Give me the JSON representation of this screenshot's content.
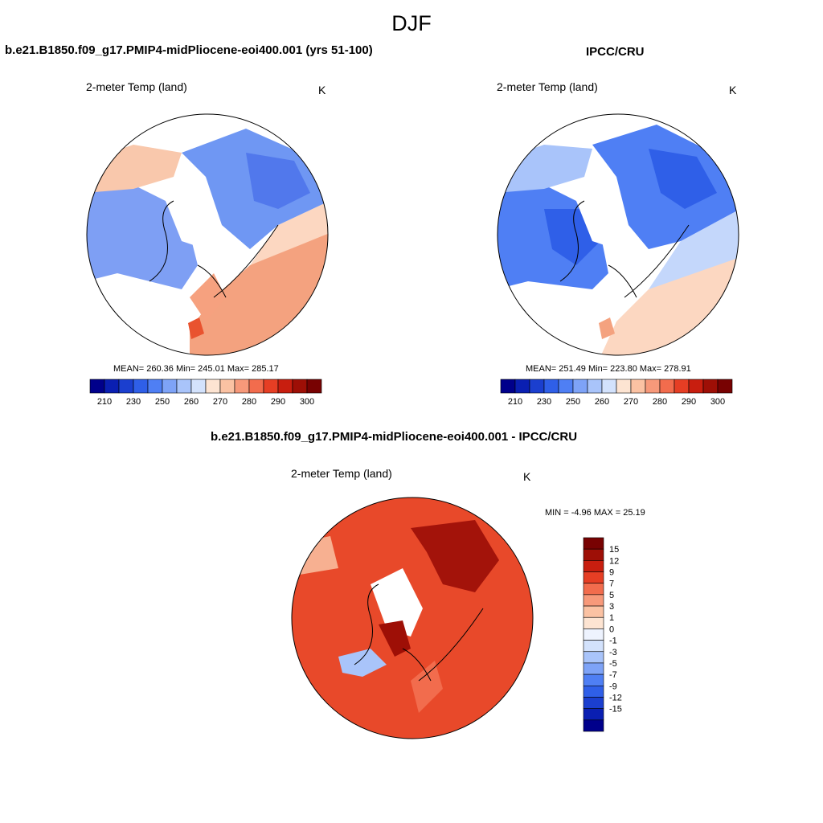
{
  "figure": {
    "title": "DJF"
  },
  "palette": {
    "horizontal": [
      "#00008b",
      "#0a1fb2",
      "#1b3fcf",
      "#2f5fe8",
      "#4f7ff4",
      "#7ea3f7",
      "#a9c4fa",
      "#d3e2fc",
      "#fde4d2",
      "#fbc2a3",
      "#f7997a",
      "#f26c4d",
      "#e63e24",
      "#c81e0f",
      "#9e0f06",
      "#780202"
    ],
    "vertical": [
      "#00008b",
      "#0a1fb2",
      "#1b3fcf",
      "#2f5fe8",
      "#4f7ff4",
      "#7ea3f7",
      "#a9c4fa",
      "#d3e2fc",
      "#eef3fe",
      "#fde4d2",
      "#fbc2a3",
      "#f7997a",
      "#f26c4d",
      "#e63e24",
      "#c81e0f",
      "#9e0f06",
      "#780202"
    ]
  },
  "panels": {
    "model": {
      "title": "b.e21.B1850.f09_g17.PMIP4-midPliocene-eoi400.001 (yrs 51-100)",
      "variable": "2-meter Temp (land)",
      "units": "K",
      "stats": "MEAN= 260.36  Min= 245.01  Max= 285.17"
    },
    "obs": {
      "title": "IPCC/CRU",
      "variable": "2-meter Temp (land)",
      "units": "K",
      "stats": "MEAN= 251.49  Min= 223.80  Max= 278.91"
    },
    "diff": {
      "title": "b.e21.B1850.f09_g17.PMIP4-midPliocene-eoi400.001 - IPCC/CRU",
      "variable": "2-meter Temp (land)",
      "units": "K",
      "stats": "MIN =  -4.96 MAX =  25.19"
    }
  },
  "chart_data": [
    {
      "type": "heatmap",
      "projection": "polar stereographic (north)",
      "title": "b.e21.B1850.f09_g17.PMIP4-midPliocene-eoi400.001 (yrs 51-100)",
      "variable": "2-meter Temp (land)",
      "units": "K",
      "mean": 260.36,
      "min": 245.01,
      "max": 285.17,
      "colorbar": {
        "orientation": "horizontal",
        "tick_labels": [
          "210",
          "230",
          "250",
          "260",
          "270",
          "280",
          "290",
          "300"
        ]
      }
    },
    {
      "type": "heatmap",
      "projection": "polar stereographic (north)",
      "title": "IPCC/CRU",
      "variable": "2-meter Temp (land)",
      "units": "K",
      "mean": 251.49,
      "min": 223.8,
      "max": 278.91,
      "colorbar": {
        "orientation": "horizontal",
        "tick_labels": [
          "210",
          "230",
          "250",
          "260",
          "270",
          "280",
          "290",
          "300"
        ]
      }
    },
    {
      "type": "heatmap",
      "projection": "polar stereographic (north)",
      "title": "b.e21.B1850.f09_g17.PMIP4-midPliocene-eoi400.001 - IPCC/CRU",
      "variable": "2-meter Temp (land)",
      "units": "K",
      "min": -4.96,
      "max": 25.19,
      "colorbar": {
        "orientation": "vertical",
        "tick_labels": [
          "15",
          "12",
          "9",
          "7",
          "5",
          "3",
          "1",
          "0",
          "-1",
          "-3",
          "-5",
          "-7",
          "-9",
          "-12",
          "-15"
        ]
      }
    }
  ]
}
